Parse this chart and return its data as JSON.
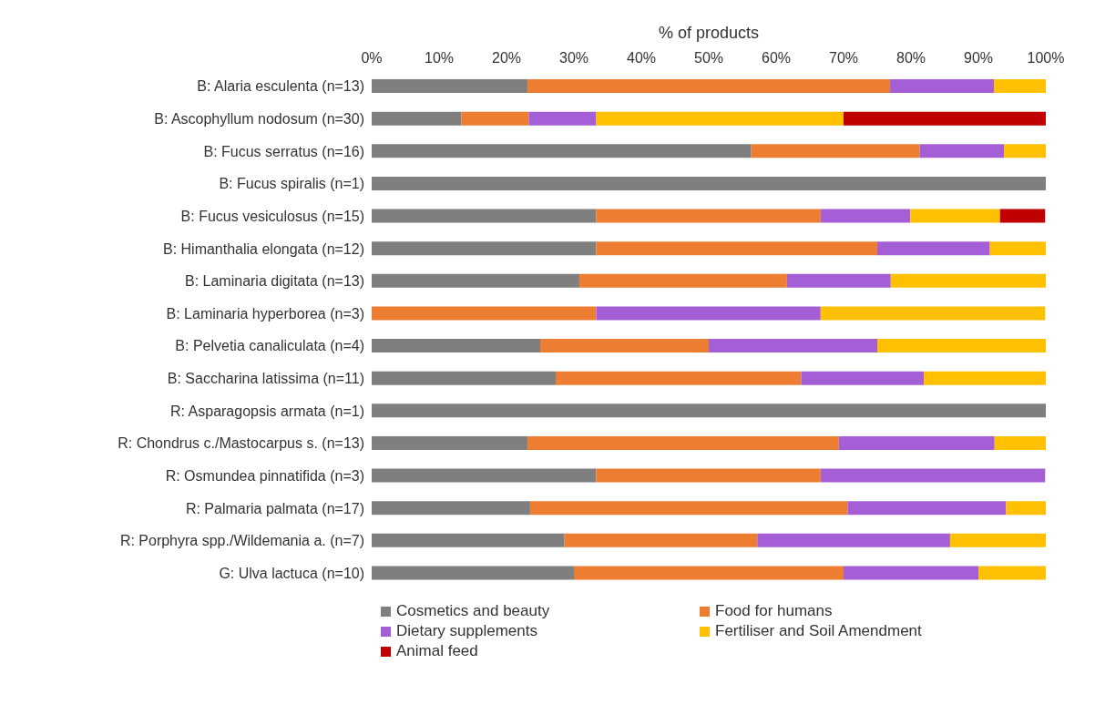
{
  "chart_data": {
    "type": "bar",
    "orientation": "horizontal",
    "stacked": true,
    "xlabel": "% of products",
    "categories": [
      "B: Alaria esculenta (n=13)",
      "B: Ascophyllum nodosum (n=30)",
      "B: Fucus serratus (n=16)",
      "B: Fucus spiralis (n=1)",
      "B: Fucus vesiculosus (n=15)",
      "B: Himanthalia elongata (n=12)",
      "B: Laminaria digitata (n=13)",
      "B: Laminaria hyperborea (n=3)",
      "B: Pelvetia canaliculata (n=4)",
      "B: Saccharina latissima (n=11)",
      "R: Asparagopsis armata (n=1)",
      "R: Chondrus c./Mastocarpus s. (n=13)",
      "R: Osmundea pinnatifida (n=3)",
      "R: Palmaria palmata (n=17)",
      "R: Porphyra spp./Wildemania a. (n=7)",
      "G: Ulva lactuca (n=10)"
    ],
    "series": [
      {
        "name": "Cosmetics and beauty",
        "color": "#7f7f7f",
        "values": [
          23.1,
          13.3,
          56.3,
          100,
          33.3,
          33.3,
          30.8,
          0,
          25,
          27.3,
          100,
          23.1,
          33.3,
          23.5,
          28.6,
          30
        ]
      },
      {
        "name": "Food for humans",
        "color": "#ed7d31",
        "values": [
          53.8,
          10,
          25,
          0,
          33.3,
          41.7,
          30.8,
          33.3,
          25,
          36.4,
          0,
          46.2,
          33.3,
          47.1,
          28.6,
          40
        ]
      },
      {
        "name": "Dietary supplements",
        "color": "#a55fd6",
        "values": [
          15.4,
          10,
          12.5,
          0,
          13.3,
          16.7,
          15.4,
          33.3,
          25,
          18.2,
          0,
          23.1,
          33.3,
          23.5,
          28.6,
          20
        ]
      },
      {
        "name": "Fertiliser and Soil Amendment",
        "color": "#ffc000",
        "values": [
          7.7,
          36.7,
          6.2,
          0,
          13.3,
          8.3,
          23,
          33.3,
          25,
          18.1,
          0,
          7.6,
          0,
          5.9,
          14.2,
          10
        ]
      },
      {
        "name": "Animal feed",
        "color": "#c00000",
        "values": [
          0,
          30,
          0,
          0,
          6.7,
          0,
          0,
          0,
          0,
          0,
          0,
          0,
          0,
          0,
          0,
          0
        ]
      }
    ],
    "xlim": [
      0,
      100
    ],
    "xticks": [
      {
        "value": 0,
        "label": "0%"
      },
      {
        "value": 10,
        "label": "10%"
      },
      {
        "value": 20,
        "label": "20%"
      },
      {
        "value": 30,
        "label": "30%"
      },
      {
        "value": 40,
        "label": "40%"
      },
      {
        "value": 50,
        "label": "50%"
      },
      {
        "value": 60,
        "label": "60%"
      },
      {
        "value": 70,
        "label": "70%"
      },
      {
        "value": 80,
        "label": "80%"
      },
      {
        "value": 90,
        "label": "90%"
      },
      {
        "value": 100,
        "label": "100%"
      }
    ],
    "grid": false,
    "legend": "bottom"
  }
}
